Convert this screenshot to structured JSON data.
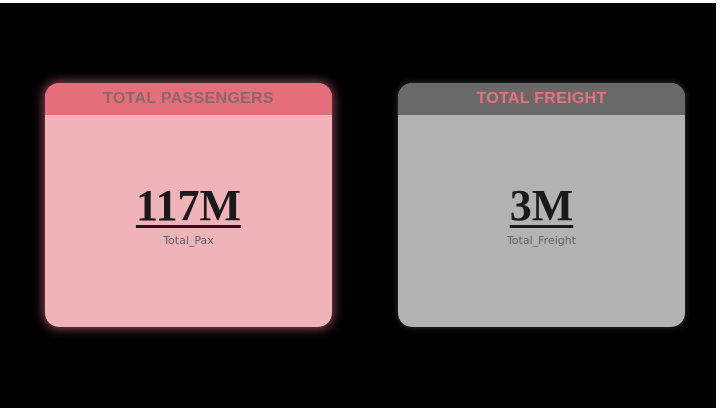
{
  "cards": [
    {
      "header": "TOTAL PASSENGERS",
      "value": "117M",
      "label": "Total_Pax",
      "header_color": "#e46e79",
      "body_color": "#f1b3ba"
    },
    {
      "header": "TOTAL FREIGHT",
      "value": "3M",
      "label": "Total_Freight",
      "header_color": "#696969",
      "body_color": "#b3b3b3"
    }
  ],
  "background_color": "#000000"
}
